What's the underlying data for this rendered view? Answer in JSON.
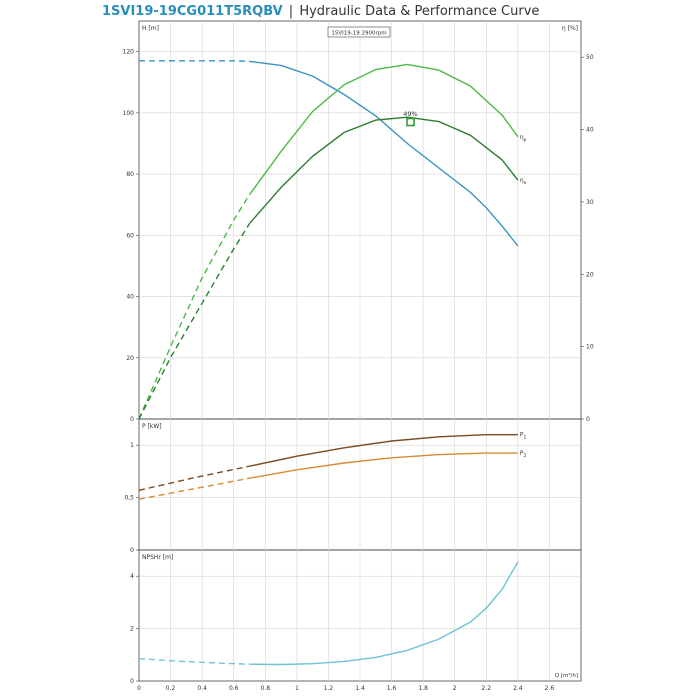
{
  "header": {
    "code": "1SVI19-19CG011T5RQBV",
    "separator": "|",
    "subtitle": "Hydraulic Data & Performance Curve"
  },
  "chart_data": [
    {
      "type": "line",
      "id": "head",
      "title": "1SVI19-19 2900rpm",
      "ylabel": "H [m]",
      "y2label": "η [%]",
      "xlim": [
        0,
        2.8
      ],
      "ylim": [
        0,
        130
      ],
      "y2lim": [
        0,
        55
      ],
      "yticks": [
        "0",
        "20",
        "40",
        "60",
        "80",
        "100",
        "120"
      ],
      "y2ticks": [
        "0",
        "10",
        "20",
        "30",
        "40",
        "50"
      ],
      "grid": true,
      "annotation": {
        "text": "49%",
        "x": 1.72,
        "y": 97
      },
      "series": [
        {
          "name": "",
          "axis": "left",
          "color": "#3a93c4",
          "dashed_until": 0.7,
          "points": [
            [
              0,
              117
            ],
            [
              0.3,
              117
            ],
            [
              0.6,
              117
            ],
            [
              0.7,
              116.8
            ],
            [
              0.9,
              115.5
            ],
            [
              1.1,
              112
            ],
            [
              1.3,
              106
            ],
            [
              1.5,
              99
            ],
            [
              1.7,
              90
            ],
            [
              1.9,
              82
            ],
            [
              2.1,
              74
            ],
            [
              2.2,
              69
            ],
            [
              2.3,
              63
            ],
            [
              2.4,
              56.5
            ]
          ]
        },
        {
          "name": "η",
          "name_sub": "p",
          "axis": "right",
          "color": "#4db848",
          "dashed_until": 0.7,
          "points": [
            [
              0,
              0
            ],
            [
              0.2,
              10
            ],
            [
              0.4,
              19.5
            ],
            [
              0.6,
              27.5
            ],
            [
              0.7,
              31
            ],
            [
              0.9,
              37
            ],
            [
              1.1,
              42.5
            ],
            [
              1.3,
              46.2
            ],
            [
              1.5,
              48.3
            ],
            [
              1.7,
              49
            ],
            [
              1.9,
              48.2
            ],
            [
              2.1,
              46
            ],
            [
              2.3,
              42
            ],
            [
              2.4,
              39
            ]
          ]
        },
        {
          "name": "η",
          "name_sub": "e",
          "axis": "right",
          "color": "#2e7d32",
          "dashed_until": 0.7,
          "points": [
            [
              0,
              0
            ],
            [
              0.2,
              8.5
            ],
            [
              0.4,
              16
            ],
            [
              0.6,
              23.5
            ],
            [
              0.7,
              27
            ],
            [
              0.9,
              32
            ],
            [
              1.1,
              36.3
            ],
            [
              1.3,
              39.6
            ],
            [
              1.5,
              41.3
            ],
            [
              1.7,
              41.7
            ],
            [
              1.9,
              41.1
            ],
            [
              2.1,
              39.2
            ],
            [
              2.3,
              35.8
            ],
            [
              2.4,
              33
            ]
          ]
        }
      ]
    },
    {
      "type": "line",
      "id": "power",
      "ylabel": "P [kW]",
      "xlim": [
        0,
        2.8
      ],
      "ylim": [
        0,
        1.25
      ],
      "yticks": [
        "0",
        "0,5",
        "1"
      ],
      "grid": true,
      "series": [
        {
          "name": "P",
          "name_sub": "1",
          "color": "#7a4a22",
          "dashed_until": 0.7,
          "points": [
            [
              0,
              0.57
            ],
            [
              0.35,
              0.69
            ],
            [
              0.7,
              0.8
            ],
            [
              1.0,
              0.895
            ],
            [
              1.3,
              0.975
            ],
            [
              1.6,
              1.04
            ],
            [
              1.9,
              1.08
            ],
            [
              2.2,
              1.1
            ],
            [
              2.4,
              1.1
            ]
          ]
        },
        {
          "name": "P",
          "name_sub": "2",
          "color": "#d98a34",
          "dashed_until": 0.7,
          "points": [
            [
              0,
              0.485
            ],
            [
              0.35,
              0.585
            ],
            [
              0.7,
              0.685
            ],
            [
              1.0,
              0.765
            ],
            [
              1.3,
              0.83
            ],
            [
              1.6,
              0.88
            ],
            [
              1.9,
              0.91
            ],
            [
              2.2,
              0.925
            ],
            [
              2.4,
              0.925
            ]
          ]
        }
      ]
    },
    {
      "type": "line",
      "id": "npsh",
      "ylabel": "NPSHr [m]",
      "xlabel": "Q [m³/h]",
      "xlim": [
        0,
        2.8
      ],
      "ylim": [
        0,
        5
      ],
      "yticks": [
        "0",
        "2",
        "4"
      ],
      "xticks": [
        "0",
        "0.2",
        "0.4",
        "0.6",
        "0.8",
        "1",
        "1.2",
        "1.4",
        "1.6",
        "1.8",
        "2",
        "2.2",
        "2.4",
        "2.6"
      ],
      "grid": true,
      "series": [
        {
          "name": "",
          "color": "#6cc4d6",
          "dashed_until": 0.7,
          "points": [
            [
              0,
              0.85
            ],
            [
              0.3,
              0.74
            ],
            [
              0.6,
              0.66
            ],
            [
              0.7,
              0.64
            ],
            [
              0.9,
              0.63
            ],
            [
              1.1,
              0.66
            ],
            [
              1.3,
              0.75
            ],
            [
              1.5,
              0.9
            ],
            [
              1.7,
              1.17
            ],
            [
              1.9,
              1.6
            ],
            [
              2.1,
              2.25
            ],
            [
              2.2,
              2.78
            ],
            [
              2.3,
              3.5
            ],
            [
              2.4,
              4.55
            ]
          ]
        }
      ]
    }
  ]
}
